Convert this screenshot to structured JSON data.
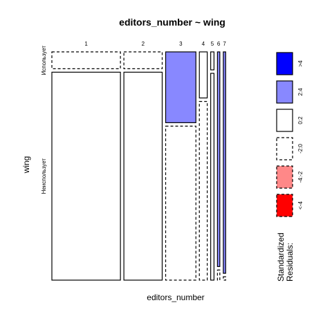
{
  "chart_data": {
    "type": "mosaic",
    "title": "editors_number ~ wing",
    "xlabel": "editors_number",
    "ylabel": "wing",
    "categories": [
      "1",
      "2",
      "3",
      "4",
      "5",
      "6",
      "7"
    ],
    "column_shares": [
      0.374,
      0.209,
      0.165,
      0.043,
      0.018,
      0.013,
      0.013
    ],
    "rows": [
      "Использует",
      "Неиспользует"
    ],
    "row_shares_within_column": {
      "Использует": [
        0.075,
        0.075,
        0.315,
        0.205,
        0.08,
        0.955,
        0.985
      ],
      "Неиспользует": [
        0.925,
        0.925,
        0.685,
        0.795,
        0.92,
        0.045,
        0.015
      ]
    },
    "residual_class": {
      "Использует": [
        "-2:0",
        "-2:0",
        "2:4",
        "0:2",
        "0:2",
        "2:4",
        "2:4"
      ],
      "Неиспользует": [
        "0:2",
        "0:2",
        "-2:0",
        "-2:0",
        "0:2",
        "-2:0",
        "-2:0"
      ]
    },
    "legend": {
      "title_line1": "Standardized",
      "title_line2": "Residuals:",
      "position": "right",
      "entries": [
        {
          "label": ">4",
          "fill": "#0000ff",
          "dashed": false
        },
        {
          "label": "2:4",
          "fill": "#8888ff",
          "dashed": false
        },
        {
          "label": "0:2",
          "fill": "#ffffff",
          "dashed": false
        },
        {
          "label": "-2:0",
          "fill": "#ffffff",
          "dashed": true
        },
        {
          "label": "-4:-2",
          "fill": "#ff8888",
          "dashed": true
        },
        {
          "label": "<-4",
          "fill": "#ff0000",
          "dashed": true
        }
      ]
    }
  }
}
